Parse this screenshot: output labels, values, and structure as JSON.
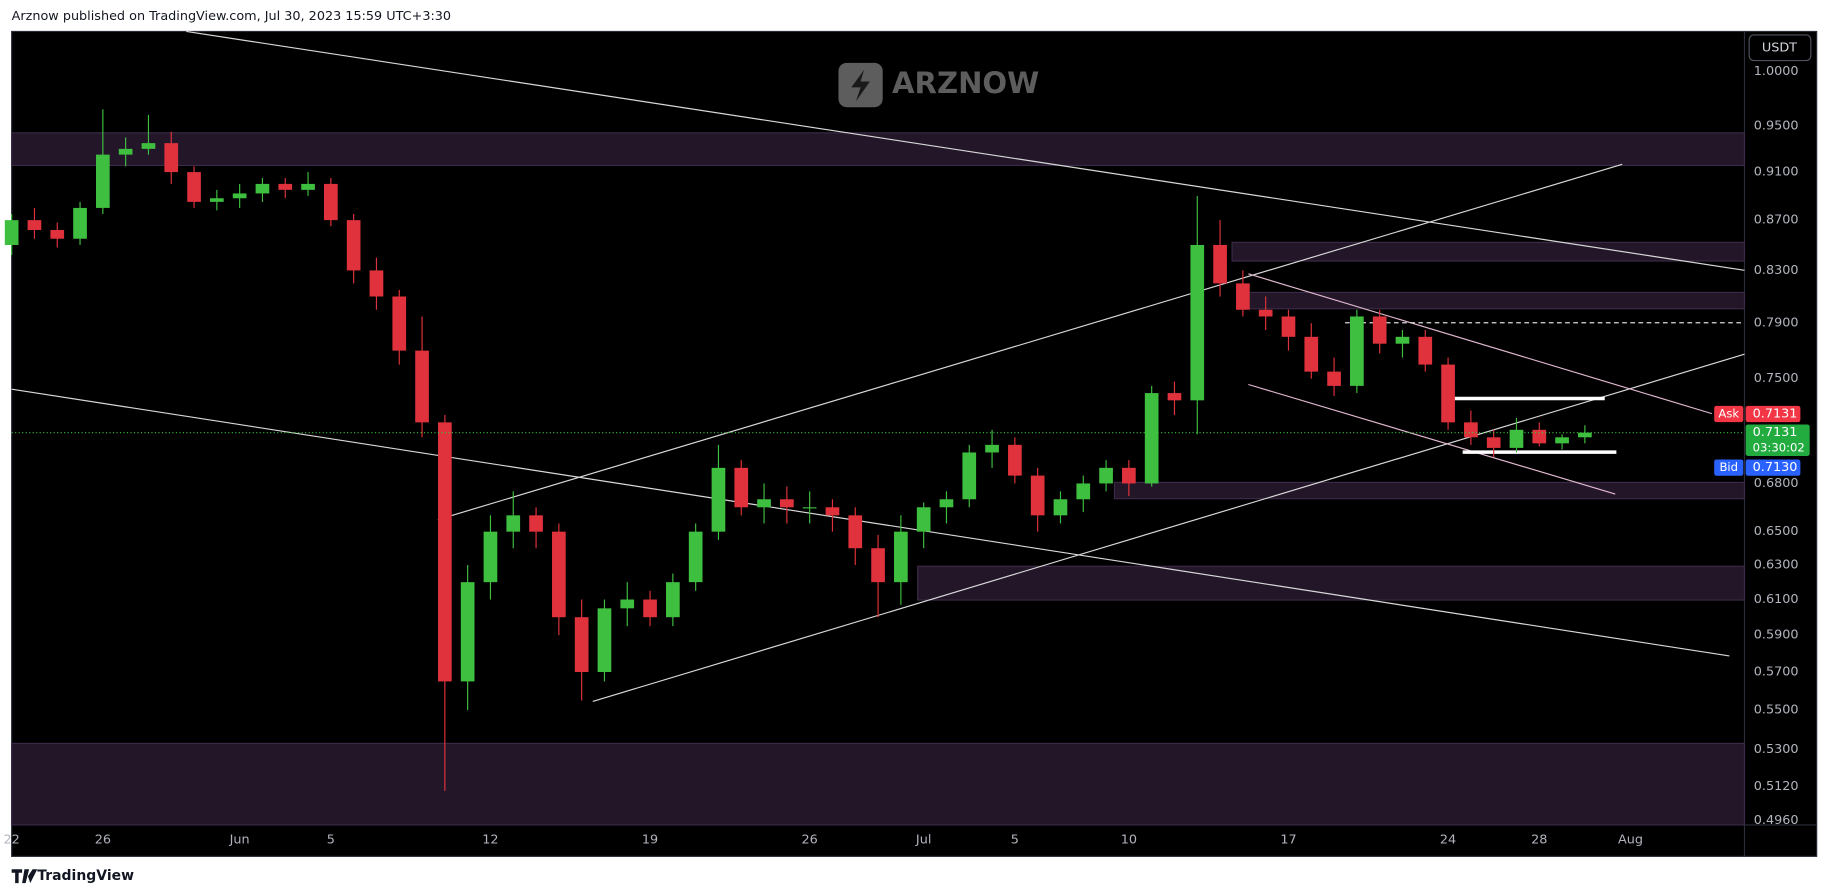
{
  "header": "Arznow published on TradingView.com, Jul 30, 2023 15:59 UTC+3:30",
  "footer": "TradingView",
  "logo": "ARZNOW",
  "currency": "USDT",
  "chart_data": {
    "type": "candlestick",
    "log_scale": true,
    "grid": false,
    "up_color": "#3fbf3f",
    "down_color": "#e0323c",
    "x": [
      "05-22",
      "05-23",
      "05-24",
      "05-25",
      "05-26",
      "05-27",
      "05-28",
      "05-29",
      "05-30",
      "05-31",
      "06-01",
      "06-02",
      "06-03",
      "06-04",
      "06-05",
      "06-06",
      "06-07",
      "06-08",
      "06-09",
      "06-10",
      "06-11",
      "06-12",
      "06-13",
      "06-14",
      "06-15",
      "06-16",
      "06-17",
      "06-18",
      "06-19",
      "06-20",
      "06-21",
      "06-22",
      "06-23",
      "06-24",
      "06-25",
      "06-26",
      "06-27",
      "06-28",
      "06-29",
      "06-30",
      "07-01",
      "07-02",
      "07-03",
      "07-04",
      "07-05",
      "07-06",
      "07-07",
      "07-08",
      "07-09",
      "07-10",
      "07-11",
      "07-12",
      "07-13",
      "07-14",
      "07-15",
      "07-16",
      "07-17",
      "07-18",
      "07-19",
      "07-20",
      "07-21",
      "07-22",
      "07-23",
      "07-24",
      "07-25",
      "07-26",
      "07-27",
      "07-28",
      "07-29",
      "07-30"
    ],
    "open": [
      0.85,
      0.87,
      0.862,
      0.855,
      0.88,
      0.925,
      0.93,
      0.935,
      0.91,
      0.885,
      0.888,
      0.892,
      0.9,
      0.895,
      0.9,
      0.87,
      0.83,
      0.81,
      0.77,
      0.72,
      0.565,
      0.62,
      0.65,
      0.66,
      0.65,
      0.6,
      0.57,
      0.605,
      0.61,
      0.6,
      0.62,
      0.65,
      0.69,
      0.665,
      0.67,
      0.665,
      0.665,
      0.66,
      0.64,
      0.62,
      0.65,
      0.665,
      0.67,
      0.7,
      0.705,
      0.685,
      0.66,
      0.67,
      0.68,
      0.69,
      0.68,
      0.74,
      0.735,
      0.85,
      0.82,
      0.8,
      0.795,
      0.78,
      0.755,
      0.745,
      0.795,
      0.775,
      0.78,
      0.76,
      0.72,
      0.71,
      0.703,
      0.715,
      0.706,
      0.71
    ],
    "high": [
      0.875,
      0.88,
      0.868,
      0.885,
      0.965,
      0.94,
      0.96,
      0.945,
      0.915,
      0.895,
      0.9,
      0.905,
      0.905,
      0.91,
      0.905,
      0.875,
      0.84,
      0.815,
      0.795,
      0.725,
      0.63,
      0.66,
      0.675,
      0.665,
      0.655,
      0.61,
      0.61,
      0.62,
      0.615,
      0.625,
      0.655,
      0.705,
      0.695,
      0.68,
      0.678,
      0.675,
      0.67,
      0.665,
      0.648,
      0.66,
      0.668,
      0.675,
      0.705,
      0.715,
      0.71,
      0.69,
      0.675,
      0.685,
      0.695,
      0.695,
      0.745,
      0.748,
      0.89,
      0.87,
      0.83,
      0.81,
      0.8,
      0.79,
      0.765,
      0.8,
      0.8,
      0.785,
      0.785,
      0.765,
      0.728,
      0.715,
      0.723,
      0.72,
      0.712,
      0.718
    ],
    "low": [
      0.842,
      0.855,
      0.848,
      0.85,
      0.875,
      0.915,
      0.925,
      0.9,
      0.88,
      0.878,
      0.88,
      0.885,
      0.888,
      0.89,
      0.865,
      0.82,
      0.8,
      0.76,
      0.71,
      0.51,
      0.55,
      0.61,
      0.64,
      0.64,
      0.59,
      0.555,
      0.565,
      0.595,
      0.595,
      0.595,
      0.615,
      0.645,
      0.66,
      0.655,
      0.655,
      0.655,
      0.65,
      0.63,
      0.6,
      0.607,
      0.64,
      0.655,
      0.665,
      0.69,
      0.68,
      0.65,
      0.655,
      0.662,
      0.675,
      0.672,
      0.678,
      0.725,
      0.712,
      0.81,
      0.795,
      0.785,
      0.77,
      0.75,
      0.738,
      0.74,
      0.768,
      0.765,
      0.755,
      0.715,
      0.705,
      0.697,
      0.7,
      0.704,
      0.702,
      0.706
    ],
    "close": [
      0.87,
      0.862,
      0.855,
      0.88,
      0.925,
      0.93,
      0.935,
      0.91,
      0.885,
      0.888,
      0.892,
      0.9,
      0.895,
      0.9,
      0.87,
      0.83,
      0.81,
      0.77,
      0.72,
      0.565,
      0.62,
      0.65,
      0.66,
      0.65,
      0.6,
      0.57,
      0.605,
      0.61,
      0.6,
      0.62,
      0.65,
      0.69,
      0.665,
      0.67,
      0.665,
      0.665,
      0.66,
      0.64,
      0.62,
      0.65,
      0.665,
      0.67,
      0.7,
      0.705,
      0.685,
      0.66,
      0.67,
      0.68,
      0.69,
      0.68,
      0.74,
      0.735,
      0.85,
      0.82,
      0.8,
      0.795,
      0.78,
      0.755,
      0.745,
      0.795,
      0.775,
      0.78,
      0.76,
      0.72,
      0.71,
      0.703,
      0.715,
      0.706,
      0.71,
      0.7131
    ],
    "xlim": [
      "05-22",
      "08-06"
    ],
    "xticks": [
      {
        "value": "05-22",
        "label": "22"
      },
      {
        "value": "05-26",
        "label": "26"
      },
      {
        "value": "06-01",
        "label": "Jun"
      },
      {
        "value": "06-05",
        "label": "5"
      },
      {
        "value": "06-12",
        "label": "12"
      },
      {
        "value": "06-19",
        "label": "19"
      },
      {
        "value": "06-26",
        "label": "26"
      },
      {
        "value": "07-01",
        "label": "Jul"
      },
      {
        "value": "07-05",
        "label": "5"
      },
      {
        "value": "07-10",
        "label": "10"
      },
      {
        "value": "07-17",
        "label": "17"
      },
      {
        "value": "07-24",
        "label": "24"
      },
      {
        "value": "07-28",
        "label": "28"
      },
      {
        "value": "08-01",
        "label": "Aug"
      }
    ],
    "ylim": [
      0.494,
      1.038
    ],
    "yticks": [
      {
        "value": 1,
        "label": "1.0000"
      },
      {
        "value": 0.95,
        "label": "0.9500"
      },
      {
        "value": 0.91,
        "label": "0.9100"
      },
      {
        "value": 0.87,
        "label": "0.8700"
      },
      {
        "value": 0.83,
        "label": "0.8300"
      },
      {
        "value": 0.79,
        "label": "0.7900"
      },
      {
        "value": 0.75,
        "label": "0.7500"
      },
      {
        "value": 0.68,
        "label": "0.6800"
      },
      {
        "value": 0.65,
        "label": "0.6500"
      },
      {
        "value": 0.63,
        "label": "0.6300"
      },
      {
        "value": 0.61,
        "label": "0.6100"
      },
      {
        "value": 0.59,
        "label": "0.5900"
      },
      {
        "value": 0.57,
        "label": "0.5700"
      },
      {
        "value": 0.55,
        "label": "0.5500"
      },
      {
        "value": 0.53,
        "label": "0.5300"
      },
      {
        "value": 0.512,
        "label": "0.5120"
      },
      {
        "value": 0.496,
        "label": "0.4960"
      }
    ],
    "last_price": 0.7131,
    "countdown": "03:30:02",
    "ask_label": "Ask",
    "ask": 0.7131,
    "bid_label": "Bid",
    "bid": {
      "value": 0.713,
      "label": "0.7130"
    }
  }
}
